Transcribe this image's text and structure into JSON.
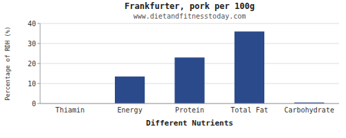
{
  "chart_data": {
    "type": "bar",
    "title": "Frankfurter, pork per 100g",
    "subtitle": "www.dietandfitnesstoday.com",
    "xlabel": "Different Nutrients",
    "ylabel": "Percentage of RDH (%)",
    "categories": [
      "Thiamin",
      "Energy",
      "Protein",
      "Total Fat",
      "Carbohydrate"
    ],
    "values": [
      0,
      13.5,
      23,
      36,
      0.5
    ],
    "color": "#2b4a8b",
    "ylim": [
      0,
      40
    ],
    "yticks": [
      0,
      10,
      20,
      30,
      40
    ],
    "grid": true
  }
}
